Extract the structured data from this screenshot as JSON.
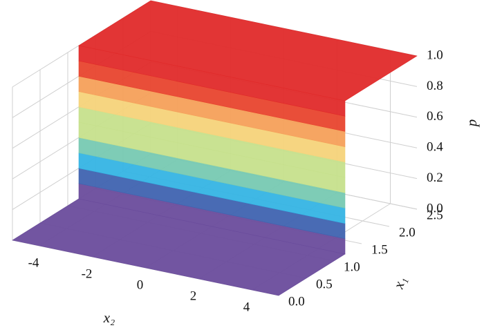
{
  "chart_data": {
    "type": "surface",
    "xlabel": "x₂",
    "ylabel": "x₁",
    "zlabel": "p",
    "xlim": [
      -5,
      5
    ],
    "xticks": [
      -4,
      -2,
      0,
      2,
      4
    ],
    "ylim": [
      0,
      2.5
    ],
    "yticks": [
      {
        "value": 0,
        "label": "0.0"
      },
      {
        "value": 0.5,
        "label": "0.5"
      },
      {
        "value": 1,
        "label": "1.0"
      },
      {
        "value": 1.5,
        "label": "1.5"
      },
      {
        "value": 2,
        "label": "2.0"
      },
      {
        "value": 2.5,
        "label": "2.5"
      }
    ],
    "zlim": [
      0,
      1
    ],
    "zticks": [
      {
        "value": 0,
        "label": "0.0"
      },
      {
        "value": 0.2,
        "label": "0.2"
      },
      {
        "value": 0.4,
        "label": "0.4"
      },
      {
        "value": 0.6,
        "label": "0.6"
      },
      {
        "value": 0.8,
        "label": "0.8"
      },
      {
        "value": 1,
        "label": "1.0"
      }
    ],
    "grid": true,
    "surface": {
      "y": [
        0,
        1.2,
        1.2,
        2.5
      ],
      "values": [
        0,
        0,
        1,
        1
      ]
    },
    "colormap": [
      "#6a4c9c",
      "#3f63b0",
      "#35b4e4",
      "#77c9b2",
      "#c6e08c",
      "#f6d37a",
      "#f5a05a",
      "#e8442e",
      "#e02a2a"
    ]
  }
}
